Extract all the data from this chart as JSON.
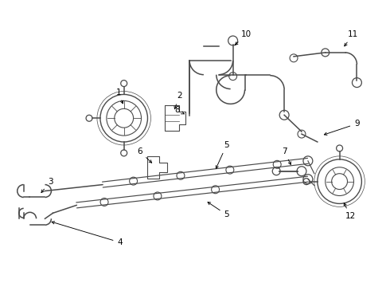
{
  "background": "#ffffff",
  "line_color": "#4a4a4a",
  "label_color": "#000000",
  "lw_pipe": 1.1,
  "lw_main": 1.0
}
